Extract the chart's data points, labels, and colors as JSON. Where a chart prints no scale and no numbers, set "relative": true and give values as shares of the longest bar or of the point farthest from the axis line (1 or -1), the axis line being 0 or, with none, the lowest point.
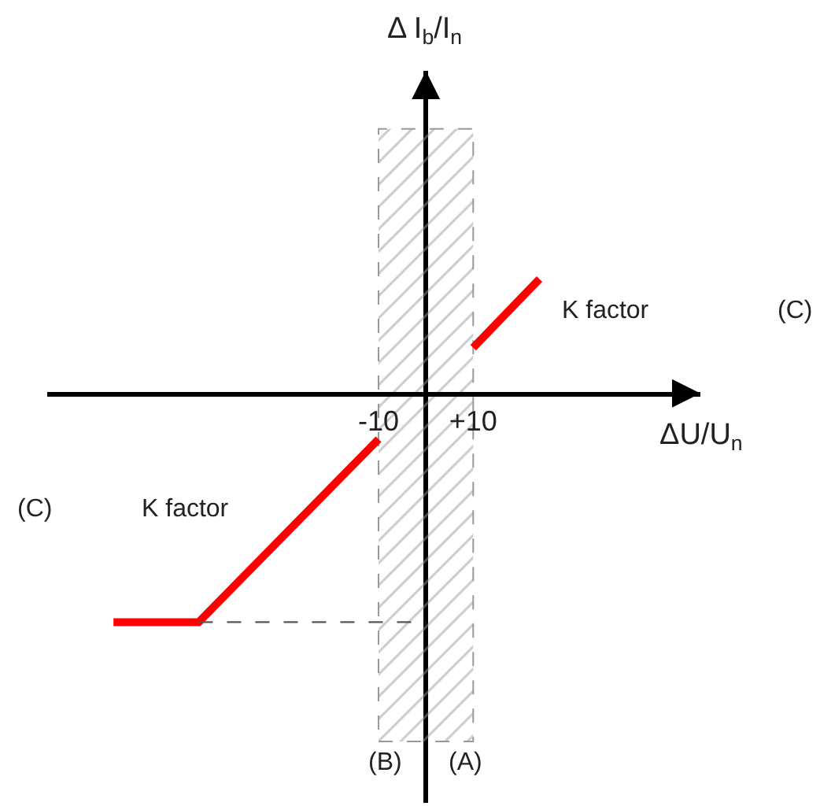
{
  "chart_data": {
    "type": "line",
    "relative": true,
    "xlabel": "ΔU/U$_{n}$",
    "xlim": [
      -80,
      58
    ],
    "xticks": [
      {
        "value": -10,
        "label": "-10"
      },
      {
        "value": 10,
        "label": "+10"
      }
    ],
    "series": [
      {
        "color": "#ff0000",
        "x": [
          -66,
          -48,
          -10
        ],
        "values": [
          -1,
          -1,
          -0.2
        ]
      },
      {
        "color": "#ff0000",
        "x": [
          10,
          24
        ],
        "values": [
          0.2,
          0.5
        ]
      },
      {
        "color": "#555555",
        "x": [
          -48,
          0
        ],
        "values": [
          -1,
          -1
        ],
        "line_style": "dashed"
      }
    ],
    "bands": [
      {
        "axis": "x",
        "from": -10,
        "to": 10,
        "color": "#999999"
      }
    ],
    "annotations": [
      "Δ I$_{b}$/I$_{n}$",
      "K factor",
      "K factor",
      "(C)",
      "(C)",
      "(B)",
      "(A)"
    ],
    "marker": "none",
    "line_style": "solid"
  }
}
